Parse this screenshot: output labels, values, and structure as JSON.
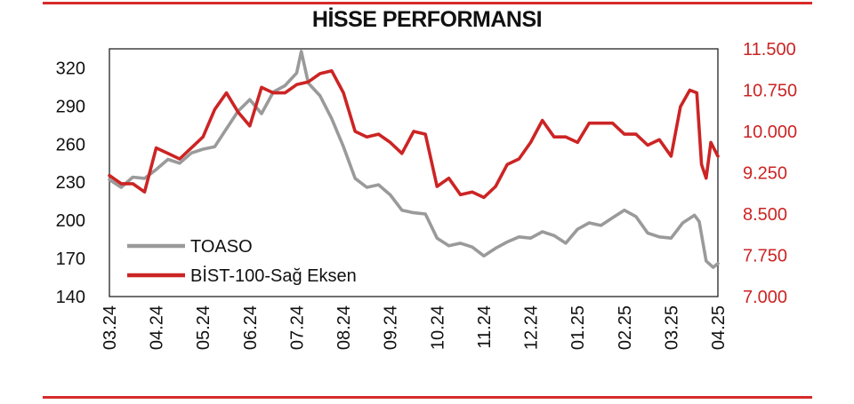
{
  "chart_data": {
    "type": "line",
    "title": "HİSSE PERFORMANSI",
    "x_ticks": [
      "03.24",
      "04.24",
      "05.24",
      "06.24",
      "07.24",
      "08.24",
      "09.24",
      "10.24",
      "11.24",
      "12.24",
      "01.25",
      "02.25",
      "03.25",
      "04.25"
    ],
    "y_left": {
      "ticks": [
        "140",
        "170",
        "200",
        "230",
        "260",
        "290",
        "320"
      ],
      "ylim": [
        140,
        335
      ]
    },
    "y_right": {
      "ticks": [
        "7.000",
        "7.750",
        "8.500",
        "9.250",
        "10.000",
        "10.750",
        "11.500"
      ],
      "ylim": [
        7000,
        11500
      ]
    },
    "legend_position": "lower-left",
    "series": [
      {
        "name": "TOASO",
        "axis": "left",
        "color": "#9a9a9a",
        "points": [
          [
            0.0,
            232
          ],
          [
            0.25,
            226
          ],
          [
            0.5,
            234
          ],
          [
            0.75,
            233
          ],
          [
            1.0,
            240
          ],
          [
            1.25,
            248
          ],
          [
            1.5,
            245
          ],
          [
            1.75,
            253
          ],
          [
            2.0,
            256
          ],
          [
            2.25,
            258
          ],
          [
            2.5,
            272
          ],
          [
            2.75,
            286
          ],
          [
            3.0,
            295
          ],
          [
            3.25,
            284
          ],
          [
            3.5,
            301
          ],
          [
            3.75,
            306
          ],
          [
            4.0,
            316
          ],
          [
            4.1,
            333
          ],
          [
            4.25,
            308
          ],
          [
            4.5,
            298
          ],
          [
            4.75,
            280
          ],
          [
            5.0,
            258
          ],
          [
            5.25,
            233
          ],
          [
            5.5,
            226
          ],
          [
            5.75,
            228
          ],
          [
            6.0,
            220
          ],
          [
            6.25,
            208
          ],
          [
            6.5,
            206
          ],
          [
            6.75,
            205
          ],
          [
            7.0,
            186
          ],
          [
            7.25,
            180
          ],
          [
            7.5,
            182
          ],
          [
            7.75,
            179
          ],
          [
            8.0,
            172
          ],
          [
            8.25,
            178
          ],
          [
            8.5,
            183
          ],
          [
            8.75,
            187
          ],
          [
            9.0,
            186
          ],
          [
            9.25,
            191
          ],
          [
            9.5,
            188
          ],
          [
            9.75,
            182
          ],
          [
            10.0,
            193
          ],
          [
            10.25,
            198
          ],
          [
            10.5,
            196
          ],
          [
            10.75,
            202
          ],
          [
            11.0,
            208
          ],
          [
            11.25,
            203
          ],
          [
            11.5,
            190
          ],
          [
            11.75,
            187
          ],
          [
            12.0,
            186
          ],
          [
            12.25,
            198
          ],
          [
            12.5,
            204
          ],
          [
            12.6,
            199
          ],
          [
            12.75,
            168
          ],
          [
            12.9,
            163
          ],
          [
            13.0,
            166
          ]
        ]
      },
      {
        "name": "BİST-100-Sağ Eksen",
        "axis": "right",
        "color": "#cc2424",
        "points": [
          [
            0.0,
            9200
          ],
          [
            0.25,
            9050
          ],
          [
            0.5,
            9050
          ],
          [
            0.75,
            8900
          ],
          [
            1.0,
            9700
          ],
          [
            1.25,
            9600
          ],
          [
            1.5,
            9500
          ],
          [
            1.75,
            9700
          ],
          [
            2.0,
            9900
          ],
          [
            2.25,
            10400
          ],
          [
            2.5,
            10700
          ],
          [
            2.75,
            10350
          ],
          [
            3.0,
            10100
          ],
          [
            3.25,
            10800
          ],
          [
            3.5,
            10700
          ],
          [
            3.75,
            10700
          ],
          [
            4.0,
            10850
          ],
          [
            4.25,
            10900
          ],
          [
            4.5,
            11050
          ],
          [
            4.75,
            11100
          ],
          [
            5.0,
            10700
          ],
          [
            5.25,
            10000
          ],
          [
            5.5,
            9900
          ],
          [
            5.75,
            9950
          ],
          [
            6.0,
            9800
          ],
          [
            6.25,
            9600
          ],
          [
            6.5,
            10000
          ],
          [
            6.75,
            9950
          ],
          [
            7.0,
            9000
          ],
          [
            7.25,
            9150
          ],
          [
            7.5,
            8850
          ],
          [
            7.75,
            8900
          ],
          [
            8.0,
            8800
          ],
          [
            8.25,
            9000
          ],
          [
            8.5,
            9400
          ],
          [
            8.75,
            9500
          ],
          [
            9.0,
            9800
          ],
          [
            9.25,
            10200
          ],
          [
            9.5,
            9900
          ],
          [
            9.75,
            9900
          ],
          [
            10.0,
            9800
          ],
          [
            10.25,
            10150
          ],
          [
            10.5,
            10150
          ],
          [
            10.75,
            10150
          ],
          [
            11.0,
            9950
          ],
          [
            11.25,
            9950
          ],
          [
            11.5,
            9750
          ],
          [
            11.75,
            9850
          ],
          [
            12.0,
            9550
          ],
          [
            12.2,
            10450
          ],
          [
            12.4,
            10750
          ],
          [
            12.55,
            10700
          ],
          [
            12.65,
            9400
          ],
          [
            12.75,
            9150
          ],
          [
            12.85,
            9800
          ],
          [
            13.0,
            9550
          ]
        ]
      }
    ]
  }
}
